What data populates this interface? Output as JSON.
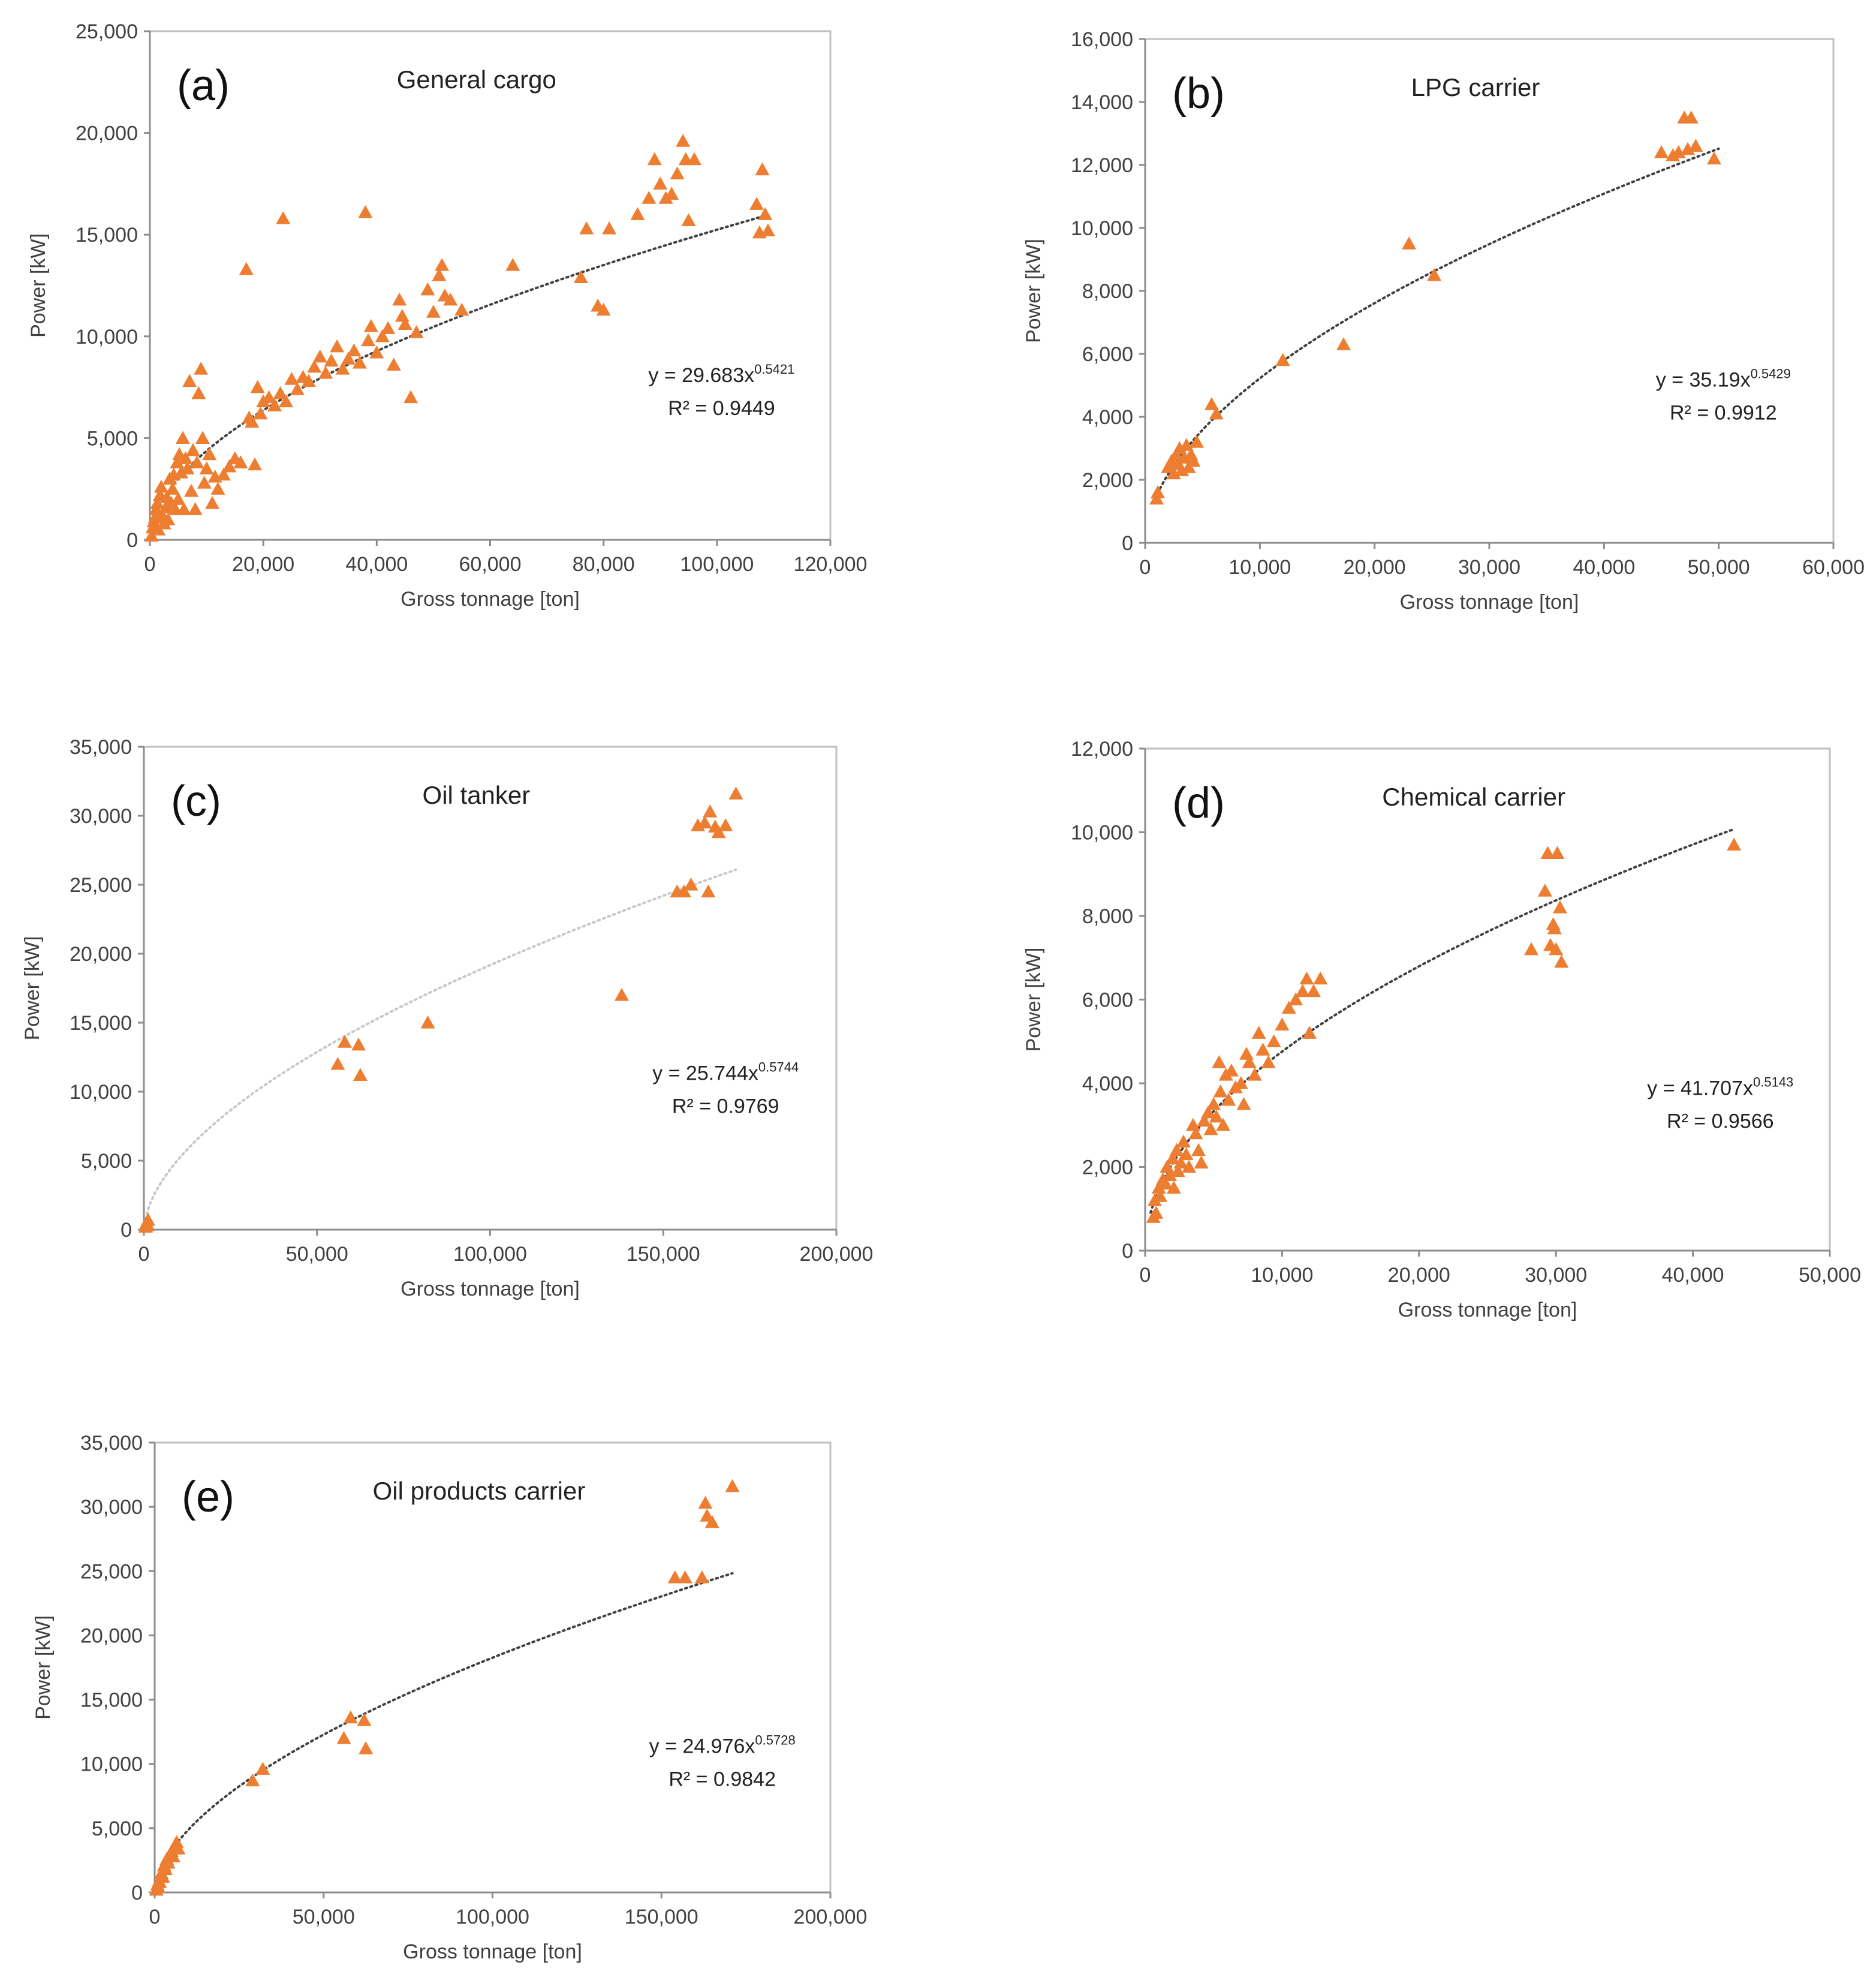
{
  "chart_data": [
    {
      "type": "scatter",
      "panel_label": "(a)",
      "title": "General cargo",
      "xlabel": "Gross tonnage [ton]",
      "ylabel": "Power [kW]",
      "xlim": [
        0,
        120000
      ],
      "ylim": [
        0,
        25000
      ],
      "xticks": [
        0,
        20000,
        40000,
        60000,
        80000,
        100000,
        120000
      ],
      "yticks": [
        0,
        5000,
        10000,
        15000,
        20000,
        25000
      ],
      "xtick_labels": [
        "0",
        "20,000",
        "40,000",
        "60,000",
        "80,000",
        "100,000",
        "120,000"
      ],
      "ytick_labels": [
        "0",
        "5,000",
        "10,000",
        "15,000",
        "20,000",
        "25,000"
      ],
      "marker_color": "#ED7D31",
      "trend": {
        "coef": 29.683,
        "exp": 0.5421,
        "x_range": [
          300,
          108000
        ],
        "color": "#404040"
      },
      "equation": {
        "text": "y = 29.683x",
        "exponent": "0.5421",
        "r2": "R² = 0.9449"
      },
      "points": [
        [
          300,
          200
        ],
        [
          500,
          600
        ],
        [
          700,
          900
        ],
        [
          900,
          1100
        ],
        [
          1100,
          1500
        ],
        [
          1300,
          1800
        ],
        [
          1500,
          500
        ],
        [
          1800,
          2200
        ],
        [
          2000,
          2600
        ],
        [
          2200,
          1200
        ],
        [
          2500,
          800
        ],
        [
          2800,
          1600
        ],
        [
          3000,
          2100
        ],
        [
          3200,
          1000
        ],
        [
          3500,
          3000
        ],
        [
          3800,
          1800
        ],
        [
          4000,
          2500
        ],
        [
          4200,
          3200
        ],
        [
          4500,
          1500
        ],
        [
          4800,
          3800
        ],
        [
          5000,
          2000
        ],
        [
          5200,
          4200
        ],
        [
          5500,
          3300
        ],
        [
          5800,
          5000
        ],
        [
          6000,
          1500
        ],
        [
          6300,
          4000
        ],
        [
          6600,
          3500
        ],
        [
          7000,
          7800
        ],
        [
          7300,
          2400
        ],
        [
          7600,
          4400
        ],
        [
          8000,
          1500
        ],
        [
          8300,
          3800
        ],
        [
          8600,
          7200
        ],
        [
          9000,
          8400
        ],
        [
          9300,
          5000
        ],
        [
          9600,
          2800
        ],
        [
          10000,
          3500
        ],
        [
          10500,
          4200
        ],
        [
          11000,
          1800
        ],
        [
          11500,
          3100
        ],
        [
          12000,
          2500
        ],
        [
          13000,
          3200
        ],
        [
          14000,
          3600
        ],
        [
          15000,
          4000
        ],
        [
          16000,
          3800
        ],
        [
          17000,
          13300
        ],
        [
          17500,
          6000
        ],
        [
          18000,
          5800
        ],
        [
          18500,
          3700
        ],
        [
          19000,
          7500
        ],
        [
          19500,
          6200
        ],
        [
          20000,
          6800
        ],
        [
          21000,
          7000
        ],
        [
          22000,
          6600
        ],
        [
          23000,
          7200
        ],
        [
          23500,
          15800
        ],
        [
          24000,
          6800
        ],
        [
          25000,
          7900
        ],
        [
          26000,
          7400
        ],
        [
          27000,
          8000
        ],
        [
          28000,
          7800
        ],
        [
          29000,
          8500
        ],
        [
          30000,
          9000
        ],
        [
          31000,
          8200
        ],
        [
          32000,
          8800
        ],
        [
          33000,
          9500
        ],
        [
          34000,
          8400
        ],
        [
          35000,
          8900
        ],
        [
          36000,
          9300
        ],
        [
          37000,
          8700
        ],
        [
          38000,
          16100
        ],
        [
          38500,
          9800
        ],
        [
          39000,
          10500
        ],
        [
          40000,
          9200
        ],
        [
          41000,
          10000
        ],
        [
          42000,
          10400
        ],
        [
          43000,
          8600
        ],
        [
          44000,
          11800
        ],
        [
          44500,
          11000
        ],
        [
          45000,
          10600
        ],
        [
          46000,
          7000
        ],
        [
          47000,
          10200
        ],
        [
          49000,
          12300
        ],
        [
          50000,
          11200
        ],
        [
          51000,
          13000
        ],
        [
          51500,
          13500
        ],
        [
          52000,
          12000
        ],
        [
          53000,
          11800
        ],
        [
          55000,
          11300
        ],
        [
          64000,
          13500
        ],
        [
          76000,
          12900
        ],
        [
          77000,
          15300
        ],
        [
          79000,
          11500
        ],
        [
          80000,
          11300
        ],
        [
          81000,
          15300
        ],
        [
          86000,
          16000
        ],
        [
          88000,
          16800
        ],
        [
          89000,
          18700
        ],
        [
          90000,
          17500
        ],
        [
          91000,
          16800
        ],
        [
          92000,
          17000
        ],
        [
          93000,
          18000
        ],
        [
          94000,
          19600
        ],
        [
          94500,
          18700
        ],
        [
          95000,
          15700
        ],
        [
          96000,
          18700
        ],
        [
          107000,
          16500
        ],
        [
          107500,
          15100
        ],
        [
          108000,
          18200
        ],
        [
          108500,
          16000
        ],
        [
          109000,
          15200
        ]
      ]
    },
    {
      "type": "scatter",
      "panel_label": "(b)",
      "title": "LPG carrier",
      "xlabel": "Gross tonnage [ton]",
      "ylabel": "Power [kW]",
      "xlim": [
        0,
        60000
      ],
      "ylim": [
        0,
        16000
      ],
      "xticks": [
        0,
        10000,
        20000,
        30000,
        40000,
        50000,
        60000
      ],
      "yticks": [
        0,
        2000,
        4000,
        6000,
        8000,
        10000,
        12000,
        14000,
        16000
      ],
      "xtick_labels": [
        "0",
        "10,000",
        "20,000",
        "30,000",
        "40,000",
        "50,000",
        "60,000"
      ],
      "ytick_labels": [
        "0",
        "2,000",
        "4,000",
        "6,000",
        "8,000",
        "10,000",
        "12,000",
        "14,000",
        "16,000"
      ],
      "marker_color": "#ED7D31",
      "trend": {
        "coef": 35.19,
        "exp": 0.5429,
        "x_range": [
          900,
          50000
        ],
        "color": "#404040"
      },
      "equation": {
        "text": "y = 35.19x",
        "exponent": "0.5429",
        "r2": "R² = 0.9912"
      },
      "points": [
        [
          1000,
          1400
        ],
        [
          1100,
          1600
        ],
        [
          2000,
          2400
        ],
        [
          2300,
          2600
        ],
        [
          2500,
          2200
        ],
        [
          2700,
          2800
        ],
        [
          2900,
          2500
        ],
        [
          3000,
          3000
        ],
        [
          3200,
          2300
        ],
        [
          3400,
          2700
        ],
        [
          3600,
          3100
        ],
        [
          3800,
          2400
        ],
        [
          4000,
          2800
        ],
        [
          4200,
          2600
        ],
        [
          4500,
          3200
        ],
        [
          5800,
          4400
        ],
        [
          6200,
          4100
        ],
        [
          12000,
          5800
        ],
        [
          17300,
          6300
        ],
        [
          23000,
          9500
        ],
        [
          25200,
          8500
        ],
        [
          45000,
          12400
        ],
        [
          46000,
          12300
        ],
        [
          46500,
          12400
        ],
        [
          47000,
          13500
        ],
        [
          47300,
          12500
        ],
        [
          47600,
          13500
        ],
        [
          48000,
          12600
        ],
        [
          49600,
          12200
        ]
      ]
    },
    {
      "type": "scatter",
      "panel_label": "(c)",
      "title": "Oil tanker",
      "xlabel": "Gross tonnage [ton]",
      "ylabel": "Power [kW]",
      "xlim": [
        0,
        200000
      ],
      "ylim": [
        0,
        35000
      ],
      "xticks": [
        0,
        50000,
        100000,
        150000,
        200000
      ],
      "yticks": [
        0,
        5000,
        10000,
        15000,
        20000,
        25000,
        30000,
        35000
      ],
      "xtick_labels": [
        "0",
        "50,000",
        "100,000",
        "150,000",
        "200,000"
      ],
      "ytick_labels": [
        "0",
        "5,000",
        "10,000",
        "15,000",
        "20,000",
        "25,000",
        "30,000",
        "35,000"
      ],
      "marker_color": "#ED7D31",
      "trend": {
        "coef": 25.744,
        "exp": 0.5744,
        "x_range": [
          100,
          171000
        ],
        "color": "#c8c8c8"
      },
      "equation": {
        "text": "y = 25.744x",
        "exponent": "0.5744",
        "r2": "R² = 0.9769"
      },
      "points": [
        [
          500,
          200
        ],
        [
          800,
          500
        ],
        [
          1000,
          300
        ],
        [
          1200,
          700
        ],
        [
          56000,
          12000
        ],
        [
          58000,
          13600
        ],
        [
          62000,
          13400
        ],
        [
          62500,
          11200
        ],
        [
          82000,
          15000
        ],
        [
          138000,
          17000
        ],
        [
          154000,
          24500
        ],
        [
          156000,
          24500
        ],
        [
          158000,
          25000
        ],
        [
          160000,
          29300
        ],
        [
          162000,
          29500
        ],
        [
          163000,
          24500
        ],
        [
          163500,
          30300
        ],
        [
          165000,
          29200
        ],
        [
          166000,
          28800
        ],
        [
          168000,
          29300
        ],
        [
          171000,
          31600
        ]
      ]
    },
    {
      "type": "scatter",
      "panel_label": "(d)",
      "title": "Chemical carrier",
      "xlabel": "Gross tonnage [ton]",
      "ylabel": "Power [kW]",
      "xlim": [
        0,
        50000
      ],
      "ylim": [
        0,
        12000
      ],
      "xticks": [
        0,
        10000,
        20000,
        30000,
        40000,
        50000
      ],
      "yticks": [
        0,
        2000,
        4000,
        6000,
        8000,
        10000,
        12000
      ],
      "xtick_labels": [
        "0",
        "10,000",
        "20,000",
        "30,000",
        "40,000",
        "50,000"
      ],
      "ytick_labels": [
        "0",
        "2,000",
        "4,000",
        "6,000",
        "8,000",
        "10,000",
        "12,000"
      ],
      "marker_color": "#ED7D31",
      "trend": {
        "coef": 41.707,
        "exp": 0.5143,
        "x_range": [
          400,
          43000
        ],
        "color": "#404040"
      },
      "equation": {
        "text": "y = 41.707x",
        "exponent": "0.5143",
        "r2": "R² = 0.9566"
      },
      "points": [
        [
          600,
          800
        ],
        [
          700,
          1200
        ],
        [
          800,
          900
        ],
        [
          1000,
          1500
        ],
        [
          1100,
          1300
        ],
        [
          1300,
          1700
        ],
        [
          1500,
          1600
        ],
        [
          1600,
          2000
        ],
        [
          1800,
          1800
        ],
        [
          2000,
          2200
        ],
        [
          2100,
          1500
        ],
        [
          2300,
          2400
        ],
        [
          2400,
          1900
        ],
        [
          2600,
          2100
        ],
        [
          2800,
          2600
        ],
        [
          3000,
          2300
        ],
        [
          3200,
          2000
        ],
        [
          3500,
          3000
        ],
        [
          3700,
          2800
        ],
        [
          3900,
          2400
        ],
        [
          4100,
          2100
        ],
        [
          4300,
          3100
        ],
        [
          4600,
          3300
        ],
        [
          4800,
          2900
        ],
        [
          5000,
          3500
        ],
        [
          5200,
          3200
        ],
        [
          5400,
          4500
        ],
        [
          5500,
          3800
        ],
        [
          5700,
          3000
        ],
        [
          5900,
          4200
        ],
        [
          6100,
          3600
        ],
        [
          6300,
          4300
        ],
        [
          6600,
          3900
        ],
        [
          7000,
          4000
        ],
        [
          7200,
          3500
        ],
        [
          7400,
          4700
        ],
        [
          7600,
          4500
        ],
        [
          8000,
          4200
        ],
        [
          8300,
          5200
        ],
        [
          8600,
          4800
        ],
        [
          9000,
          4500
        ],
        [
          9400,
          5000
        ],
        [
          10000,
          5400
        ],
        [
          10500,
          5800
        ],
        [
          11000,
          6000
        ],
        [
          11500,
          6200
        ],
        [
          11800,
          6500
        ],
        [
          12000,
          5200
        ],
        [
          12300,
          6200
        ],
        [
          12800,
          6500
        ],
        [
          28200,
          7200
        ],
        [
          29200,
          8600
        ],
        [
          29400,
          9500
        ],
        [
          29600,
          7300
        ],
        [
          29800,
          7800
        ],
        [
          29900,
          7700
        ],
        [
          30000,
          7200
        ],
        [
          30100,
          9500
        ],
        [
          30300,
          8200
        ],
        [
          30400,
          6900
        ],
        [
          43000,
          9700
        ]
      ]
    },
    {
      "type": "scatter",
      "panel_label": "(e)",
      "title": "Oil products carrier",
      "xlabel": "Gross tonnage [ton]",
      "ylabel": "Power [kW]",
      "xlim": [
        0,
        200000
      ],
      "ylim": [
        0,
        35000
      ],
      "xticks": [
        0,
        50000,
        100000,
        150000,
        200000
      ],
      "yticks": [
        0,
        5000,
        10000,
        15000,
        20000,
        25000,
        30000,
        35000
      ],
      "xtick_labels": [
        "0",
        "50,000",
        "100,000",
        "150,000",
        "200,000"
      ],
      "ytick_labels": [
        "0",
        "5,000",
        "10,000",
        "15,000",
        "20,000",
        "25,000",
        "30,000",
        "35,000"
      ],
      "marker_color": "#ED7D31",
      "trend": {
        "coef": 24.976,
        "exp": 0.5728,
        "x_range": [
          300,
          171000
        ],
        "color": "#404040"
      },
      "equation": {
        "text": "y = 24.976x",
        "exponent": "0.5728",
        "r2": "R² = 0.9842"
      },
      "points": [
        [
          500,
          200
        ],
        [
          800,
          600
        ],
        [
          1000,
          400
        ],
        [
          1300,
          900
        ],
        [
          1500,
          800
        ],
        [
          2000,
          1500
        ],
        [
          2400,
          1200
        ],
        [
          2800,
          2100
        ],
        [
          3200,
          1800
        ],
        [
          3600,
          2600
        ],
        [
          4000,
          2300
        ],
        [
          4500,
          2900
        ],
        [
          5000,
          3200
        ],
        [
          5500,
          2800
        ],
        [
          6000,
          3600
        ],
        [
          6500,
          3900
        ],
        [
          7000,
          3400
        ],
        [
          29000,
          8700
        ],
        [
          32000,
          9600
        ],
        [
          56000,
          12000
        ],
        [
          58000,
          13600
        ],
        [
          62000,
          13400
        ],
        [
          62500,
          11200
        ],
        [
          154000,
          24500
        ],
        [
          157000,
          24500
        ],
        [
          162000,
          24500
        ],
        [
          163000,
          30300
        ],
        [
          163500,
          29300
        ],
        [
          165000,
          28800
        ],
        [
          171000,
          31600
        ]
      ]
    }
  ]
}
